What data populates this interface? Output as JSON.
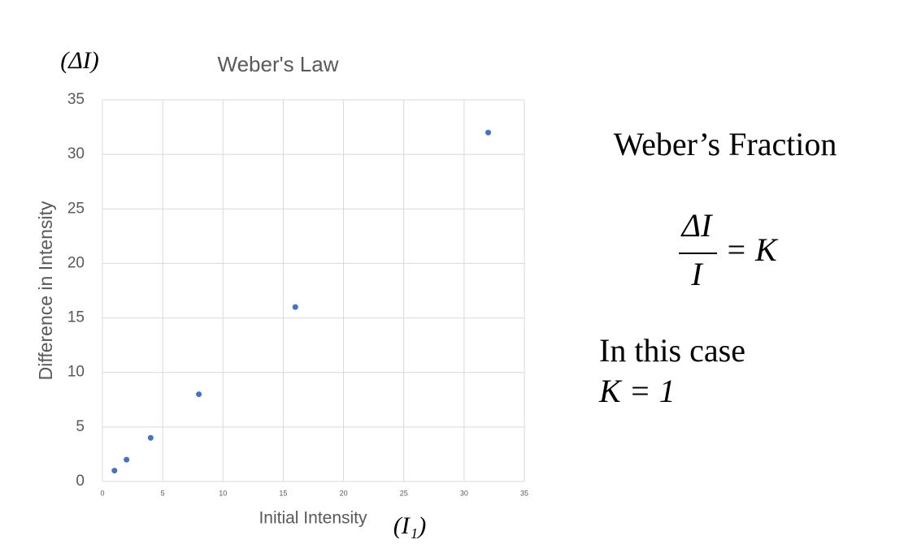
{
  "chart_data": {
    "type": "scatter",
    "title": "Weber's Law",
    "x_label": "Initial Intensity",
    "y_label": "Difference in Intensity",
    "x": [
      1,
      2,
      4,
      8,
      16,
      32
    ],
    "values": [
      1,
      2,
      4,
      8,
      16,
      32
    ],
    "color": "#4472c4",
    "xlim": [
      0,
      35
    ],
    "ylim": [
      0,
      35
    ],
    "xticks": [
      0,
      5,
      10,
      15,
      20,
      25,
      30,
      35
    ],
    "yticks": [
      0,
      5,
      10,
      15,
      20,
      25,
      30,
      35
    ],
    "grid": true
  },
  "annotations": {
    "y_unit": "(ΔI)",
    "x_unit": "(I₁)",
    "heading": "Weber’s Fraction",
    "formula": {
      "numerator": "ΔI",
      "denominator": "I",
      "rhs": "= K"
    },
    "note": [
      "In this case",
      "K = 1"
    ]
  }
}
